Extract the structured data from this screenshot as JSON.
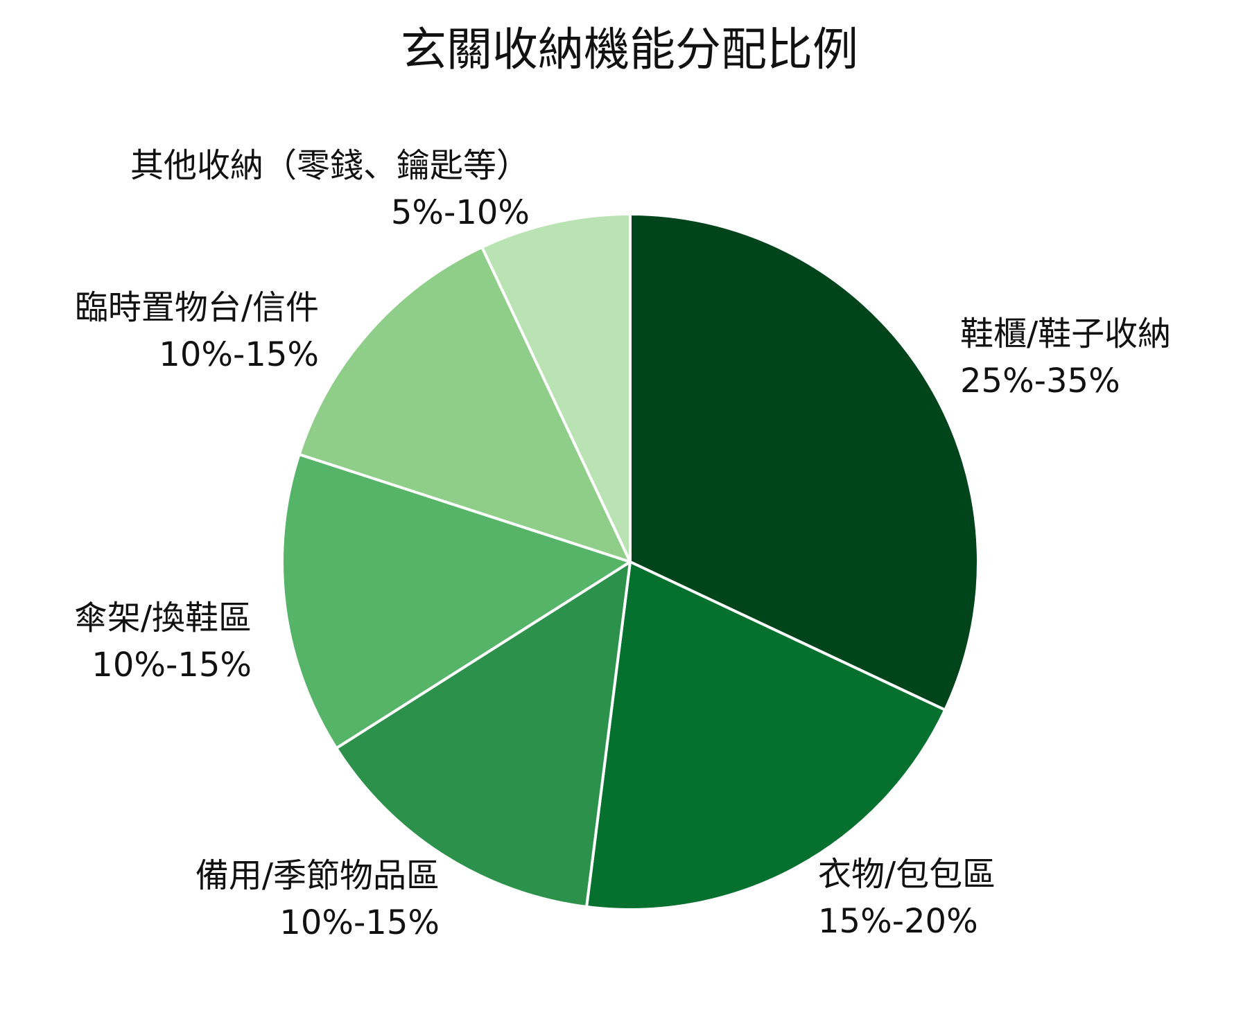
{
  "chart_data": {
    "type": "pie",
    "title": "玄關收納機能分配比例",
    "slices": [
      {
        "label": "鞋櫃/鞋子收納",
        "range": "25%-35%",
        "value": 32,
        "color": "#00441b"
      },
      {
        "label": "衣物/包包區",
        "range": "15%-20%",
        "value": 20,
        "color": "#06712f"
      },
      {
        "label": "備用/季節物品區",
        "range": "10%-15%",
        "value": 14,
        "color": "#2c924b"
      },
      {
        "label": "傘架/換鞋區",
        "range": "10%-15%",
        "value": 14,
        "color": "#56b469"
      },
      {
        "label": "臨時置物台/信件",
        "range": "10%-15%",
        "value": 13,
        "color": "#8ece88"
      },
      {
        "label": "其他收納（零錢、鑰匙等）",
        "range": "5%-10%",
        "value": 7,
        "color": "#b9e3b2"
      }
    ],
    "start_angle": "12 o'clock",
    "direction": "clockwise",
    "legend": "none"
  }
}
